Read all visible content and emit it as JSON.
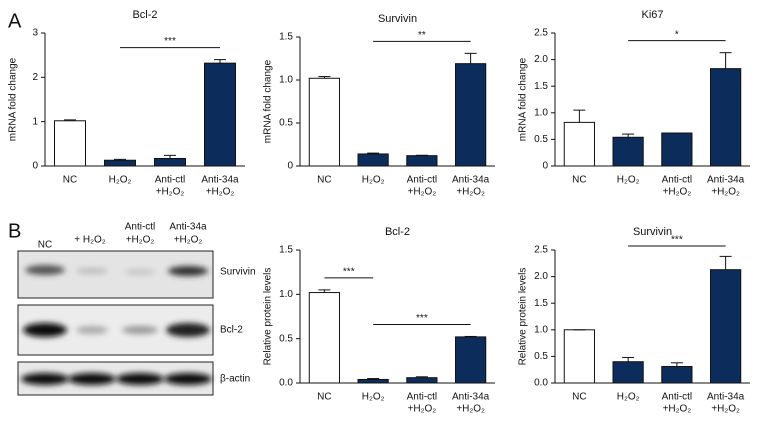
{
  "panel_labels": [
    "A",
    "B"
  ],
  "blot": {
    "lanes": [
      [
        "NC"
      ],
      [
        "+ H₂O₂"
      ],
      [
        "Anti-ctl",
        "+H₂O₂"
      ],
      [
        "Anti-34a",
        "+H₂O₂"
      ]
    ],
    "rows": [
      "Survivin",
      "Bcl-2",
      "β-actin"
    ]
  },
  "chart_data": [
    {
      "type": "bar",
      "title": "Bcl-2",
      "y_label": "mRNA fold change",
      "categories": [
        [
          "NC"
        ],
        [
          "H₂O₂"
        ],
        [
          "Anti-ctl",
          "+H₂O₂"
        ],
        [
          "Anti-34a",
          "+H₂O₂"
        ]
      ],
      "values": [
        1.02,
        0.13,
        0.17,
        2.32
      ],
      "errors": [
        0.02,
        0.02,
        0.07,
        0.08
      ],
      "colors": [
        "#ffffff",
        "#0c2d5b",
        "#0c2d5b",
        "#0c2d5b"
      ],
      "ylim": [
        0,
        3
      ],
      "yticks": [
        0,
        1,
        2,
        3
      ],
      "comparisons": [
        {
          "label": "***",
          "groups": [
            1,
            3
          ]
        }
      ]
    },
    {
      "type": "bar",
      "title": "Survivin",
      "y_label": "mRNA fold change",
      "categories": [
        [
          "NC"
        ],
        [
          "H₂O₂"
        ],
        [
          "Anti-ctl",
          "+H₂O₂"
        ],
        [
          "Anti-34a",
          "+H₂O₂"
        ]
      ],
      "values": [
        1.02,
        0.14,
        0.12,
        1.19
      ],
      "errors": [
        0.02,
        0.01,
        0.005,
        0.12
      ],
      "colors": [
        "#ffffff",
        "#0c2d5b",
        "#0c2d5b",
        "#0c2d5b"
      ],
      "ylim": [
        0,
        1.5
      ],
      "yticks": [
        0,
        0.5,
        {
          "value": 1,
          "label": "1.0"
        },
        1.5
      ],
      "comparisons": [
        {
          "label": "**",
          "groups": [
            1,
            3
          ]
        }
      ]
    },
    {
      "type": "bar",
      "title": "Ki67",
      "y_label": "mRNA fold change",
      "categories": [
        [
          "NC"
        ],
        [
          "H₂O₂"
        ],
        [
          "Anti-ctl",
          "+H₂O₂"
        ],
        [
          "Anti-34a",
          "+H₂O₂"
        ]
      ],
      "values": [
        0.82,
        0.54,
        0.62,
        1.83
      ],
      "errors": [
        0.23,
        0.06,
        0,
        0.3
      ],
      "colors": [
        "#ffffff",
        "#0c2d5b",
        "#0c2d5b",
        "#0c2d5b"
      ],
      "ylim": [
        0,
        2.5
      ],
      "yticks": [
        0,
        0.5,
        {
          "value": 1,
          "label": "1.0"
        },
        1.5,
        {
          "value": 2,
          "label": "2.0"
        },
        2.5
      ],
      "comparisons": [
        {
          "label": "*",
          "groups": [
            1,
            3
          ]
        }
      ]
    },
    {
      "type": "bar",
      "title": "Bcl-2",
      "y_label": "Relative protein levels",
      "categories": [
        [
          "NC"
        ],
        [
          "H₂O₂"
        ],
        [
          "Anti-ctl",
          "+H₂O₂"
        ],
        [
          "Anti-34a",
          "+H₂O₂"
        ]
      ],
      "values": [
        1.02,
        0.04,
        0.06,
        0.52
      ],
      "errors": [
        0.03,
        0.01,
        0.01,
        0.005
      ],
      "colors": [
        "#ffffff",
        "#0c2d5b",
        "#0c2d5b",
        "#0c2d5b"
      ],
      "ylim": [
        0,
        1.5
      ],
      "yticks": [
        {
          "value": 0,
          "label": "0.0"
        },
        0.5,
        {
          "value": 1,
          "label": "1.0"
        },
        1.5
      ],
      "comparisons": [
        {
          "label": "***",
          "groups": [
            0,
            1
          ]
        },
        {
          "label": "***",
          "groups": [
            1,
            3
          ]
        }
      ]
    },
    {
      "type": "bar",
      "title": "Survivin",
      "y_label": "Relative protein levels",
      "categories": [
        [
          "NC"
        ],
        [
          "H₂O₂"
        ],
        [
          "Anti-ctl",
          "+H₂O₂"
        ],
        [
          "Anti-34a",
          "+H₂O₂"
        ]
      ],
      "values": [
        1.0,
        0.4,
        0.31,
        2.13
      ],
      "errors": [
        0,
        0.08,
        0.07,
        0.25
      ],
      "colors": [
        "#ffffff",
        "#0c2d5b",
        "#0c2d5b",
        "#0c2d5b"
      ],
      "ylim": [
        0,
        2.5
      ],
      "yticks": [
        {
          "value": 0,
          "label": "0.0"
        },
        0.5,
        {
          "value": 1,
          "label": "1.0"
        },
        1.5,
        {
          "value": 2,
          "label": "2.0"
        },
        2.5
      ],
      "comparisons": [
        {
          "label": "***",
          "groups": [
            1,
            3
          ]
        }
      ]
    }
  ]
}
